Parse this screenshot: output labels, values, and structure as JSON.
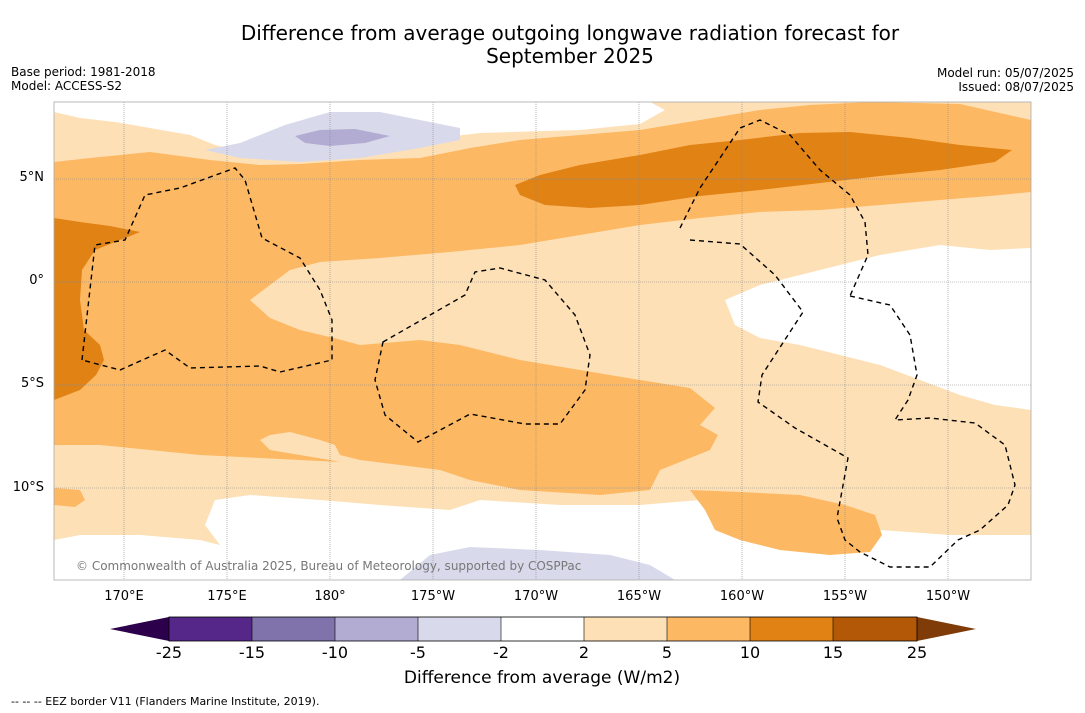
{
  "title": {
    "line1": "Difference from average outgoing longwave radiation forecast for",
    "line2": "September 2025"
  },
  "meta": {
    "base_period": "Base period: 1981-2018",
    "model": "Model: ACCESS-S2",
    "model_run": "Model run: 05/07/2025",
    "issued": "Issued: 08/07/2025"
  },
  "axes": {
    "longitude_labels": [
      "170°E",
      "175°E",
      "180°",
      "175°W",
      "170°W",
      "165°W",
      "160°W",
      "155°W",
      "150°W"
    ],
    "latitude_labels": [
      "5°N",
      "0°",
      "5°S",
      "10°S"
    ]
  },
  "credit": "© Commonwealth of Australia 2025, Bureau of Meteorology, supported by COSPPac",
  "colorbar": {
    "title": "Difference from average (W/m2)",
    "tick_labels": [
      "-25",
      "-15",
      "-10",
      "-5",
      "-2",
      "2",
      "5",
      "10",
      "15",
      "25"
    ],
    "colors": [
      "#2d004b",
      "#542788",
      "#8073ac",
      "#b2abd2",
      "#d8daeb",
      "#ffffff",
      "#fee0b6",
      "#fdb863",
      "#e08214",
      "#b35806",
      "#7f3b08"
    ]
  },
  "footer": "-- -- -- EEZ border V11 (Flanders Marine Institute, 2019).",
  "chart_data": {
    "type": "heatmap",
    "title": "Difference from average outgoing longwave radiation forecast for September 2025",
    "colorbar_label": "Difference from average (W/m2)",
    "levels": [
      -25,
      -15,
      -10,
      -5,
      -2,
      2,
      5,
      10,
      15,
      25
    ],
    "xlim": [
      "167°E",
      "147°W"
    ],
    "ylim": [
      "14°S",
      "8.5°N"
    ],
    "regions": [
      {
        "category": "10 to 15",
        "description": "band near 5-7°N from ~170°W to ~152°W"
      },
      {
        "category": "10 to 15",
        "description": "western edge around 0°-6°S near 167°E"
      },
      {
        "category": "5 to 10",
        "description": "broad band 2-7°N across domain and 3-10°S centre"
      },
      {
        "category": "2 to 5",
        "description": "equatorial belt and southern regions"
      },
      {
        "category": "-2 to 2",
        "description": "near 3°S 155°W, far south 175°E, northwest 6°N"
      },
      {
        "category": "-5 to -2",
        "description": "near 7°N 178°E and 13°S 173°W"
      },
      {
        "category": "-10 to -5",
        "description": "small core near 7°N 178°E"
      }
    ]
  }
}
